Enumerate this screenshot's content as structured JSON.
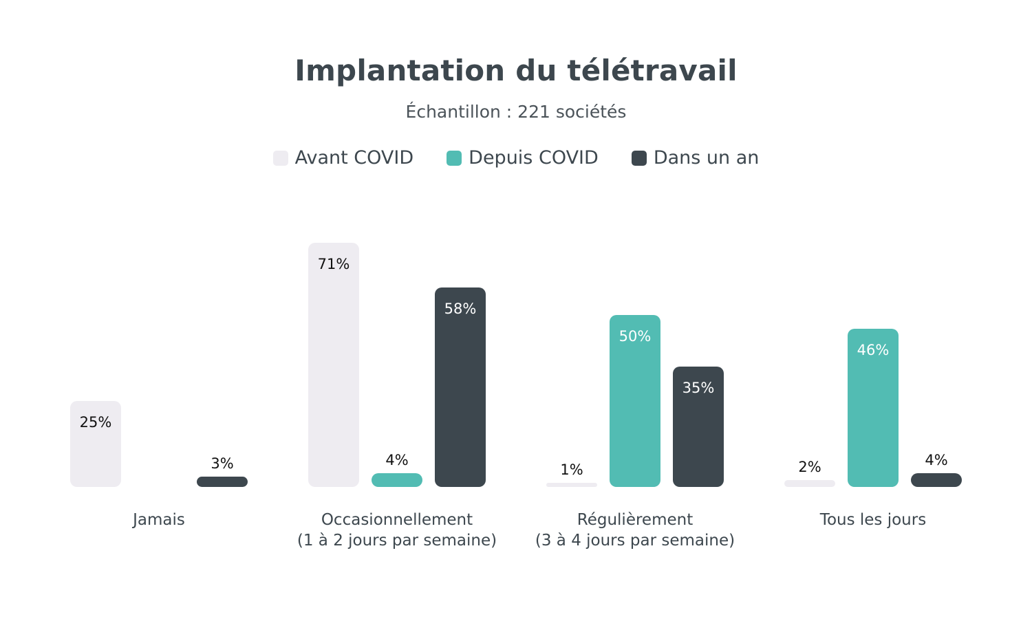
{
  "colors": {
    "avant": "#eeecf1",
    "depuis": "#52bcb3",
    "dans": "#3d474e",
    "text_dark": "#111111",
    "text_light": "#ffffff"
  },
  "chart_data": {
    "type": "bar",
    "title": "Implantation du télétravail",
    "subtitle": "Échantillon : 221 sociétés",
    "categories": [
      [
        "Jamais"
      ],
      [
        "Occasionnellement",
        "(1 à 2 jours par semaine)"
      ],
      [
        "Régulièrement",
        "(3 à 4 jours par semaine)"
      ],
      [
        "Tous les jours"
      ]
    ],
    "series": [
      {
        "name": "Avant COVID",
        "color": "#eeecf1",
        "values": [
          25,
          71,
          1,
          2
        ],
        "labels": [
          "25%",
          "71%",
          "1%",
          "2%"
        ]
      },
      {
        "name": "Depuis COVID",
        "color": "#52bcb3",
        "values": [
          0,
          4,
          50,
          46
        ],
        "labels": [
          "",
          "4%",
          "50%",
          "46%"
        ]
      },
      {
        "name": "Dans un an",
        "color": "#3d474e",
        "values": [
          3,
          58,
          35,
          4
        ],
        "labels": [
          "3%",
          "58%",
          "35%",
          "4%"
        ]
      }
    ],
    "unit": "%",
    "legend_position": "top-center",
    "grid": false,
    "ylim": [
      0,
      71
    ]
  }
}
